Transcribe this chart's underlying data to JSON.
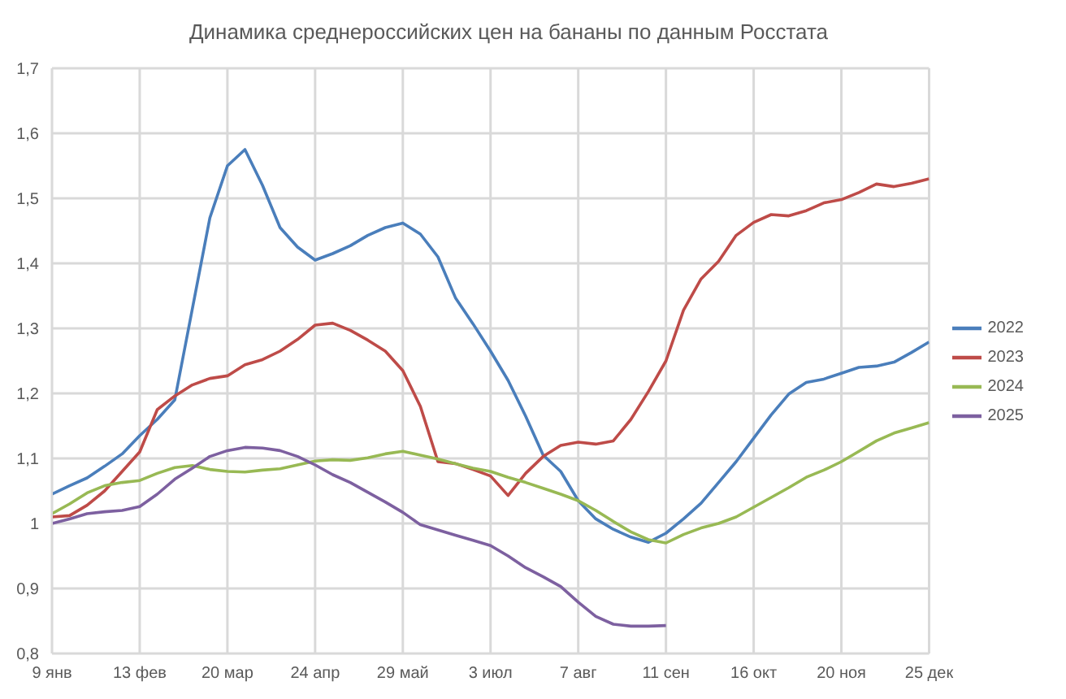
{
  "chart_data": {
    "type": "line",
    "title": "Динамика среднероссийских цен на бананы по данным Росстата",
    "categories": [
      "9 янв",
      null,
      null,
      null,
      null,
      "13 фев",
      null,
      null,
      null,
      null,
      "20 мар",
      null,
      null,
      null,
      null,
      "24 апр",
      null,
      null,
      null,
      null,
      "29 май",
      null,
      null,
      null,
      null,
      "3 июл",
      null,
      null,
      null,
      null,
      "7 авг",
      null,
      null,
      null,
      null,
      "11 сен",
      null,
      null,
      null,
      null,
      "16 окт",
      null,
      null,
      null,
      null,
      "20 ноя",
      null,
      null,
      null,
      null,
      "25 дек"
    ],
    "series": [
      {
        "name": "2022",
        "color": "#4a7ebb",
        "values": [
          1.045,
          1.058,
          1.07,
          1.088,
          1.107,
          1.135,
          1.16,
          1.19,
          1.33,
          1.47,
          1.55,
          1.575,
          1.52,
          1.455,
          1.425,
          1.405,
          1.415,
          1.427,
          1.443,
          1.455,
          1.462,
          1.445,
          1.41,
          1.347,
          1.307,
          1.265,
          1.22,
          1.165,
          1.105,
          1.08,
          1.035,
          1.007,
          0.991,
          0.979,
          0.971,
          0.985,
          1.007,
          1.031,
          1.063,
          1.095,
          1.131,
          1.167,
          1.199,
          1.217,
          1.222,
          1.231,
          1.24,
          1.242,
          1.248,
          1.263,
          1.279
        ]
      },
      {
        "name": "2023",
        "color": "#be4b48",
        "values": [
          1.01,
          1.012,
          1.028,
          1.05,
          1.08,
          1.11,
          1.175,
          1.196,
          1.213,
          1.223,
          1.227,
          1.244,
          1.252,
          1.265,
          1.283,
          1.305,
          1.308,
          1.297,
          1.282,
          1.265,
          1.235,
          1.18,
          1.095,
          1.092,
          1.083,
          1.073,
          1.043,
          1.077,
          1.103,
          1.12,
          1.125,
          1.122,
          1.127,
          1.16,
          1.203,
          1.25,
          1.328,
          1.376,
          1.403,
          1.443,
          1.463,
          1.475,
          1.473,
          1.481,
          1.493,
          1.498,
          1.509,
          1.522,
          1.518,
          1.523,
          1.53
        ]
      },
      {
        "name": "2024",
        "color": "#98b954",
        "values": [
          1.015,
          1.03,
          1.047,
          1.058,
          1.063,
          1.066,
          1.077,
          1.086,
          1.089,
          1.083,
          1.08,
          1.079,
          1.082,
          1.084,
          1.09,
          1.096,
          1.098,
          1.097,
          1.101,
          1.107,
          1.111,
          1.105,
          1.099,
          1.092,
          1.085,
          1.08,
          1.071,
          1.063,
          1.054,
          1.045,
          1.035,
          1.02,
          1.003,
          0.987,
          0.975,
          0.97,
          0.983,
          0.993,
          1.0,
          1.01,
          1.025,
          1.04,
          1.055,
          1.071,
          1.082,
          1.095,
          1.111,
          1.127,
          1.139,
          1.147,
          1.155
        ]
      },
      {
        "name": "2025",
        "color": "#7d60a0",
        "values": [
          1.0,
          1.007,
          1.015,
          1.018,
          1.02,
          1.026,
          1.045,
          1.068,
          1.085,
          1.103,
          1.112,
          1.117,
          1.116,
          1.112,
          1.103,
          1.09,
          1.075,
          1.063,
          1.048,
          1.033,
          1.017,
          0.998,
          0.99,
          0.982,
          0.974,
          0.966,
          0.95,
          0.932,
          0.918,
          0.903,
          0.879,
          0.857,
          0.845,
          0.842,
          0.842,
          0.843,
          null,
          null,
          null,
          null,
          null,
          null,
          null,
          null,
          null,
          null,
          null,
          null,
          null,
          null,
          null
        ]
      }
    ],
    "ylim": [
      0.8,
      1.7
    ],
    "yticks": [
      {
        "value": 0.8,
        "label": "0,8"
      },
      {
        "value": 0.9,
        "label": "0,9"
      },
      1,
      {
        "value": 1.1,
        "label": "1,1"
      },
      {
        "value": 1.2,
        "label": "1,2"
      },
      {
        "value": 1.3,
        "label": "1,3"
      },
      {
        "value": 1.4,
        "label": "1,4"
      },
      {
        "value": 1.5,
        "label": "1,5"
      },
      {
        "value": 1.6,
        "label": "1,6"
      },
      {
        "value": 1.7,
        "label": "1,7"
      }
    ],
    "grid": true,
    "legend": "right",
    "marker": "none",
    "line_style": "solid"
  }
}
